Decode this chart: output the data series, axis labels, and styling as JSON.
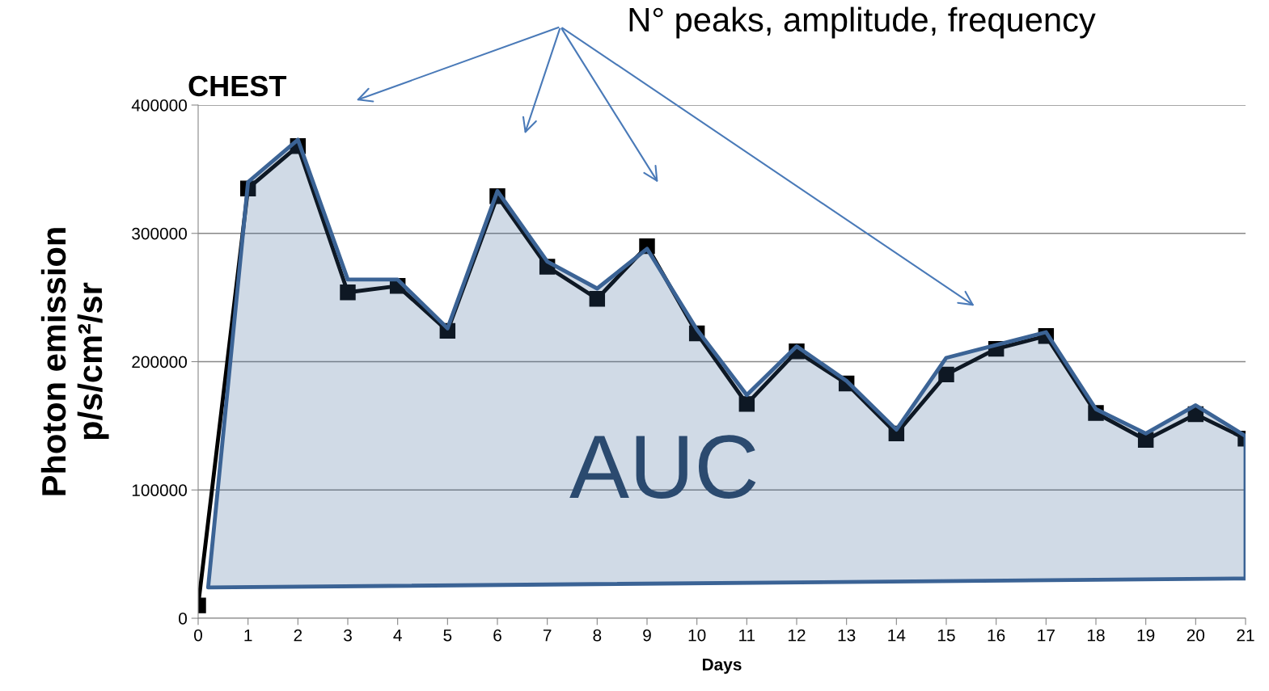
{
  "chart_data": {
    "type": "line",
    "title": "CHEST",
    "xlabel": "Days",
    "ylabel": "Photon emission\np/s/cm²/sr",
    "xlim": [
      0,
      21
    ],
    "xticks": [
      0,
      1,
      2,
      3,
      4,
      5,
      6,
      7,
      8,
      9,
      10,
      11,
      12,
      13,
      14,
      15,
      16,
      17,
      18,
      19,
      20,
      21
    ],
    "ylim": [
      0,
      400000
    ],
    "yticks": [
      0,
      100000,
      200000,
      300000,
      400000
    ],
    "grid": "y",
    "legend": false,
    "series": [
      {
        "type": "area",
        "color": "#3b6395",
        "x": [
          0.2,
          1,
          2,
          3,
          4,
          5,
          6,
          7,
          8,
          9,
          10,
          11,
          12,
          13,
          14,
          15,
          16,
          17,
          18,
          19,
          20,
          21,
          21
        ],
        "values": [
          24000,
          340000,
          373000,
          264000,
          264000,
          226000,
          333000,
          278000,
          257000,
          288000,
          225000,
          174000,
          212000,
          185000,
          147000,
          203000,
          213000,
          223000,
          163000,
          144000,
          166000,
          142000,
          31000
        ]
      },
      {
        "color": "#000000",
        "marker": "square",
        "line_style": "solid",
        "x": [
          0,
          1,
          2,
          3,
          4,
          5,
          6,
          7,
          8,
          9,
          10,
          11,
          12,
          13,
          14,
          15,
          16,
          17,
          18,
          19,
          20,
          21
        ],
        "values": [
          10000,
          335000,
          368000,
          254000,
          259000,
          224000,
          329000,
          274000,
          249000,
          290000,
          222000,
          167000,
          208000,
          183000,
          144000,
          190000,
          210000,
          220000,
          160000,
          139000,
          159000,
          140000
        ]
      }
    ],
    "annotations": [
      "N° peaks, amplitude, frequency",
      "AUC"
    ]
  }
}
